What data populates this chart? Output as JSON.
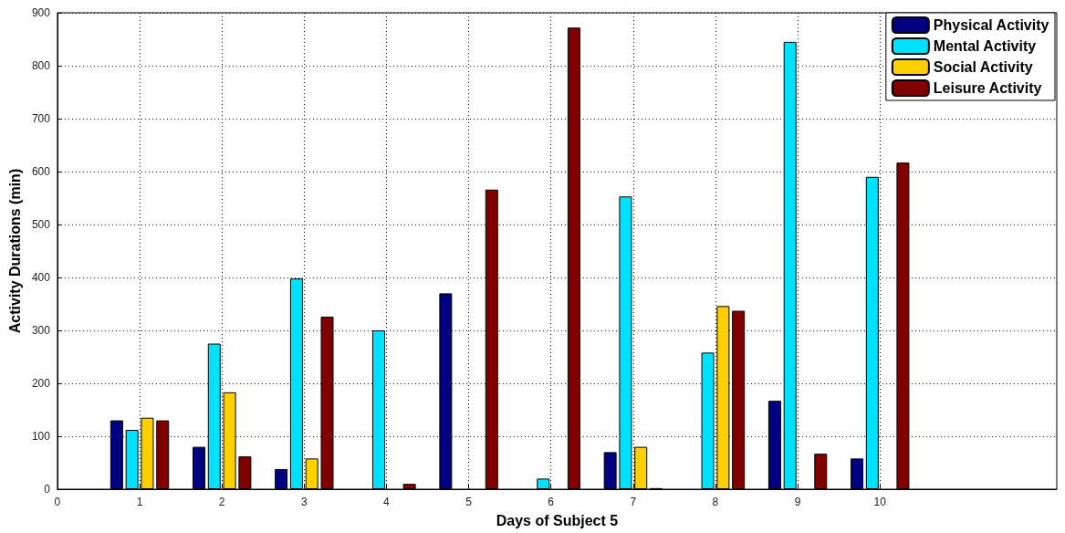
{
  "chart_data": {
    "type": "bar",
    "xlabel": "Days of Subject 5",
    "ylabel": "Activity Durations (min)",
    "x": [
      1,
      2,
      3,
      4,
      5,
      6,
      7,
      8,
      9,
      10
    ],
    "xlim": [
      0,
      12.15
    ],
    "xticks": [
      0,
      1,
      2,
      3,
      4,
      5,
      6,
      7,
      8,
      9,
      10
    ],
    "ylim": [
      0,
      900
    ],
    "yticks": [
      0,
      100,
      200,
      300,
      400,
      500,
      600,
      700,
      800,
      900
    ],
    "grid": true,
    "legend": "top right",
    "series": [
      {
        "name": "Physical Activity",
        "color": "#000080",
        "values": [
          130,
          80,
          38,
          0,
          370,
          0,
          70,
          0,
          167,
          58
        ]
      },
      {
        "name": "Mental Activity",
        "color": "#00e1ff",
        "values": [
          112,
          275,
          398,
          300,
          0,
          20,
          553,
          258,
          845,
          590
        ]
      },
      {
        "name": "Social Activity",
        "color": "#ffd000",
        "values": [
          135,
          183,
          58,
          0,
          0,
          0,
          80,
          346,
          0,
          0
        ]
      },
      {
        "name": "Leisure Activity",
        "color": "#800000",
        "values": [
          130,
          62,
          326,
          10,
          566,
          872,
          2,
          337,
          67,
          617
        ]
      }
    ]
  }
}
